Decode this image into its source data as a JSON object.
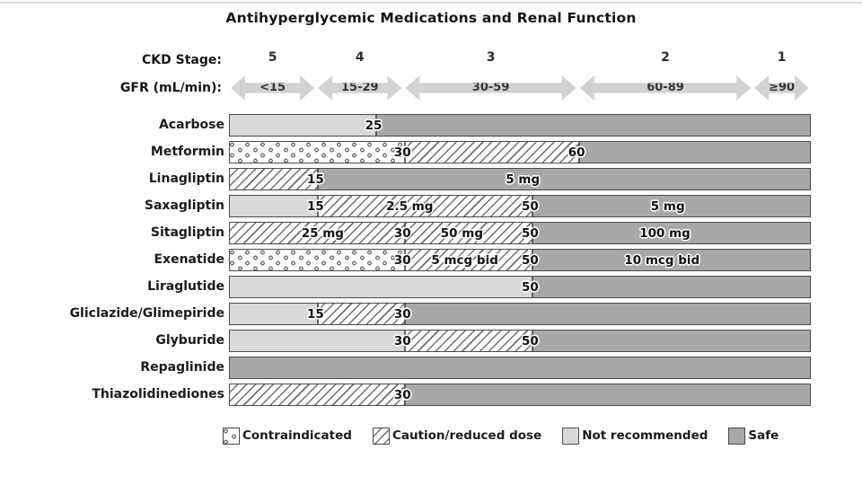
{
  "title": "Antihyperglycemic Medications and Renal Function",
  "header": {
    "ckd_label": "CKD Stage:",
    "gfr_label": "GFR (mL/min):",
    "stages": [
      {
        "stage": "5",
        "gfr": "<15",
        "from": 0,
        "to": 15
      },
      {
        "stage": "4",
        "gfr": "15-29",
        "from": 15,
        "to": 30
      },
      {
        "stage": "3",
        "gfr": "30-59",
        "from": 30,
        "to": 60
      },
      {
        "stage": "2",
        "gfr": "60-89",
        "from": 60,
        "to": 90
      },
      {
        "stage": "1",
        "gfr": "≥90",
        "from": 90,
        "to": 100
      }
    ]
  },
  "chart_data": {
    "type": "bar",
    "title": "Antihyperglycemic Medications and Renal Function",
    "xlabel": "GFR (mL/min)",
    "axis_range": [
      0,
      100
    ],
    "legend_position": "bottom",
    "rows": [
      {
        "name": "Acarbose",
        "segments": [
          {
            "from": 0,
            "to": 25,
            "status": "not_recommended"
          },
          {
            "from": 25,
            "to": 100,
            "status": "safe"
          }
        ],
        "markers": [
          {
            "gfr": 25,
            "label": "25"
          }
        ],
        "doses": []
      },
      {
        "name": "Metformin",
        "segments": [
          {
            "from": 0,
            "to": 30,
            "status": "contraindicated"
          },
          {
            "from": 30,
            "to": 60,
            "status": "caution"
          },
          {
            "from": 60,
            "to": 100,
            "status": "safe"
          }
        ],
        "markers": [
          {
            "gfr": 30,
            "label": "30"
          },
          {
            "gfr": 60,
            "label": "60"
          }
        ],
        "doses": []
      },
      {
        "name": "Linagliptin",
        "segments": [
          {
            "from": 0,
            "to": 15,
            "status": "caution"
          },
          {
            "from": 15,
            "to": 100,
            "status": "safe"
          }
        ],
        "markers": [
          {
            "gfr": 15,
            "label": "15"
          }
        ],
        "doses": [
          {
            "at": 50.5,
            "label": "5 mg"
          }
        ]
      },
      {
        "name": "Saxagliptin",
        "segments": [
          {
            "from": 0,
            "to": 15,
            "status": "not_recommended"
          },
          {
            "from": 15,
            "to": 50,
            "status": "caution"
          },
          {
            "from": 50,
            "to": 100,
            "status": "safe"
          }
        ],
        "markers": [
          {
            "gfr": 15,
            "label": "15"
          },
          {
            "gfr": 50,
            "label": "50"
          }
        ],
        "doses": [
          {
            "at": 31,
            "label": "2.5 mg"
          },
          {
            "at": 75.5,
            "label": "5 mg"
          }
        ]
      },
      {
        "name": "Sitagliptin",
        "segments": [
          {
            "from": 0,
            "to": 50,
            "status": "caution"
          },
          {
            "from": 50,
            "to": 100,
            "status": "safe"
          }
        ],
        "markers": [
          {
            "gfr": 30,
            "label": "30"
          },
          {
            "gfr": 50,
            "label": "50"
          }
        ],
        "doses": [
          {
            "at": 16,
            "label": "25 mg"
          },
          {
            "at": 40,
            "label": "50 mg"
          },
          {
            "at": 75,
            "label": "100 mg"
          }
        ]
      },
      {
        "name": "Exenatide",
        "segments": [
          {
            "from": 0,
            "to": 30,
            "status": "contraindicated"
          },
          {
            "from": 30,
            "to": 50,
            "status": "caution"
          },
          {
            "from": 50,
            "to": 100,
            "status": "safe"
          }
        ],
        "markers": [
          {
            "gfr": 30,
            "label": "30"
          },
          {
            "gfr": 50,
            "label": "50"
          }
        ],
        "doses": [
          {
            "at": 40.5,
            "label": "5 mcg bid"
          },
          {
            "at": 74.5,
            "label": "10 mcg bid"
          }
        ]
      },
      {
        "name": "Liraglutide",
        "segments": [
          {
            "from": 0,
            "to": 50,
            "status": "not_recommended"
          },
          {
            "from": 50,
            "to": 100,
            "status": "safe"
          }
        ],
        "markers": [
          {
            "gfr": 50,
            "label": "50"
          }
        ],
        "doses": []
      },
      {
        "name": "Gliclazide/Glimepiride",
        "segments": [
          {
            "from": 0,
            "to": 15,
            "status": "not_recommended"
          },
          {
            "from": 15,
            "to": 30,
            "status": "caution"
          },
          {
            "from": 30,
            "to": 100,
            "status": "safe"
          }
        ],
        "markers": [
          {
            "gfr": 15,
            "label": "15"
          },
          {
            "gfr": 30,
            "label": "30"
          }
        ],
        "doses": []
      },
      {
        "name": "Glyburide",
        "segments": [
          {
            "from": 0,
            "to": 30,
            "status": "not_recommended"
          },
          {
            "from": 30,
            "to": 50,
            "status": "caution"
          },
          {
            "from": 50,
            "to": 100,
            "status": "safe"
          }
        ],
        "markers": [
          {
            "gfr": 30,
            "label": "30"
          },
          {
            "gfr": 50,
            "label": "50"
          }
        ],
        "doses": []
      },
      {
        "name": "Repaglinide",
        "segments": [
          {
            "from": 0,
            "to": 100,
            "status": "safe"
          }
        ],
        "markers": [],
        "doses": []
      },
      {
        "name": "Thiazolidinediones",
        "segments": [
          {
            "from": 0,
            "to": 30,
            "status": "caution"
          },
          {
            "from": 30,
            "to": 100,
            "status": "safe"
          }
        ],
        "markers": [
          {
            "gfr": 30,
            "label": "30"
          }
        ],
        "doses": []
      }
    ]
  },
  "legend": [
    {
      "key": "contraindicated",
      "label": "Contraindicated"
    },
    {
      "key": "caution",
      "label": "Caution/reduced dose"
    },
    {
      "key": "not_recommended",
      "label": "Not recommended"
    },
    {
      "key": "safe",
      "label": "Safe"
    }
  ],
  "colors": {
    "safe": "#a8a8a8",
    "not_recommended": "#d9d9d9",
    "arrow_fill": "#d2d2d2",
    "pattern_line": "#6e6e6e"
  }
}
